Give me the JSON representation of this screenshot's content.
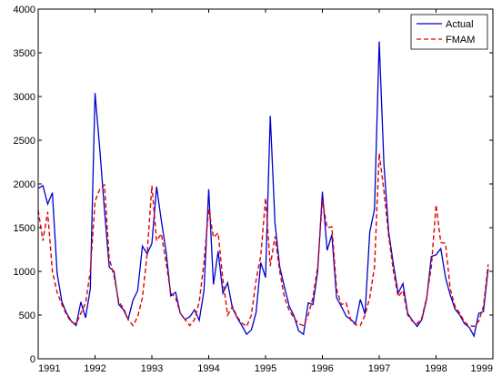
{
  "chart_data": {
    "type": "line",
    "xlim": [
      1991,
      1999
    ],
    "ylim": [
      0,
      4000
    ],
    "xticks": [
      1991,
      1992,
      1993,
      1994,
      1995,
      1996,
      1997,
      1998,
      1999
    ],
    "yticks": [
      0,
      500,
      1000,
      1500,
      2000,
      2500,
      3000,
      3500,
      4000
    ],
    "grid": false,
    "legend_position": "top-right",
    "series": [
      {
        "name": "Actual",
        "color": "#0000cc",
        "style": "solid",
        "x": [
          1991.0,
          1991.083,
          1991.167,
          1991.25,
          1991.333,
          1991.417,
          1991.5,
          1991.583,
          1991.667,
          1991.75,
          1991.833,
          1991.917,
          1992.0,
          1992.083,
          1992.167,
          1992.25,
          1992.333,
          1992.417,
          1992.5,
          1992.583,
          1992.667,
          1992.75,
          1992.833,
          1992.917,
          1993.0,
          1993.083,
          1993.167,
          1993.25,
          1993.333,
          1993.417,
          1993.5,
          1993.583,
          1993.667,
          1993.75,
          1993.833,
          1993.917,
          1994.0,
          1994.083,
          1994.167,
          1994.25,
          1994.333,
          1994.417,
          1994.5,
          1994.583,
          1994.667,
          1994.75,
          1994.833,
          1994.917,
          1995.0,
          1995.083,
          1995.167,
          1995.25,
          1995.333,
          1995.417,
          1995.5,
          1995.583,
          1995.667,
          1995.75,
          1995.833,
          1995.917,
          1996.0,
          1996.083,
          1996.167,
          1996.25,
          1996.333,
          1996.417,
          1996.5,
          1996.583,
          1996.667,
          1996.75,
          1996.833,
          1996.917,
          1997.0,
          1997.083,
          1997.167,
          1997.25,
          1997.333,
          1997.417,
          1997.5,
          1997.583,
          1997.667,
          1997.75,
          1997.833,
          1997.917,
          1998.0,
          1998.083,
          1998.167,
          1998.25,
          1998.333,
          1998.417,
          1998.5,
          1998.583,
          1998.667,
          1998.75,
          1998.833,
          1998.917
        ],
        "values": [
          1950,
          1980,
          1770,
          1900,
          980,
          650,
          520,
          430,
          380,
          650,
          470,
          800,
          3040,
          2400,
          1700,
          1050,
          1000,
          620,
          560,
          450,
          670,
          780,
          1290,
          1200,
          1320,
          1970,
          1580,
          1230,
          720,
          760,
          520,
          450,
          480,
          560,
          440,
          780,
          1940,
          850,
          1230,
          750,
          870,
          580,
          470,
          380,
          280,
          330,
          530,
          1100,
          930,
          2780,
          1550,
          1050,
          820,
          600,
          490,
          320,
          280,
          640,
          620,
          1000,
          1910,
          1240,
          1420,
          700,
          600,
          490,
          450,
          400,
          680,
          510,
          1450,
          1710,
          3630,
          2220,
          1450,
          1080,
          750,
          860,
          520,
          440,
          370,
          450,
          680,
          1170,
          1190,
          1260,
          930,
          730,
          570,
          500,
          400,
          360,
          260,
          520,
          540,
          1030
        ]
      },
      {
        "name": "FMAM",
        "color": "#e00000",
        "style": "dashed",
        "x": [
          1991.0,
          1991.083,
          1991.167,
          1991.25,
          1991.333,
          1991.417,
          1991.5,
          1991.583,
          1991.667,
          1991.75,
          1991.833,
          1991.917,
          1992.0,
          1992.083,
          1992.167,
          1992.25,
          1992.333,
          1992.417,
          1992.5,
          1992.583,
          1992.667,
          1992.75,
          1992.833,
          1992.917,
          1993.0,
          1993.083,
          1993.167,
          1993.25,
          1993.333,
          1993.417,
          1993.5,
          1993.583,
          1993.667,
          1993.75,
          1993.833,
          1993.917,
          1994.0,
          1994.083,
          1994.167,
          1994.25,
          1994.333,
          1994.417,
          1994.5,
          1994.583,
          1994.667,
          1994.75,
          1994.833,
          1994.917,
          1995.0,
          1995.083,
          1995.167,
          1995.25,
          1995.333,
          1995.417,
          1995.5,
          1995.583,
          1995.667,
          1995.75,
          1995.833,
          1995.917,
          1996.0,
          1996.083,
          1996.167,
          1996.25,
          1996.333,
          1996.417,
          1996.5,
          1996.583,
          1996.667,
          1996.75,
          1996.833,
          1996.917,
          1997.0,
          1997.083,
          1997.167,
          1997.25,
          1997.333,
          1997.417,
          1997.5,
          1997.583,
          1997.667,
          1997.75,
          1997.833,
          1997.917,
          1998.0,
          1998.083,
          1998.167,
          1998.25,
          1998.333,
          1998.417,
          1998.5,
          1998.583,
          1998.667,
          1998.75,
          1998.833,
          1998.917
        ],
        "values": [
          1700,
          1350,
          1680,
          1000,
          760,
          620,
          500,
          420,
          400,
          520,
          640,
          1000,
          1800,
          1940,
          1990,
          1150,
          950,
          650,
          580,
          450,
          380,
          480,
          700,
          1200,
          1980,
          1350,
          1430,
          1100,
          750,
          700,
          520,
          450,
          380,
          450,
          650,
          1100,
          1720,
          1390,
          1440,
          900,
          500,
          600,
          480,
          410,
          370,
          500,
          900,
          1180,
          1840,
          1060,
          1400,
          1000,
          700,
          550,
          470,
          400,
          380,
          500,
          700,
          1050,
          1810,
          1500,
          1510,
          800,
          620,
          640,
          440,
          390,
          380,
          500,
          700,
          1050,
          2350,
          1920,
          1400,
          1000,
          710,
          780,
          500,
          430,
          400,
          470,
          700,
          1050,
          1760,
          1330,
          1320,
          800,
          600,
          520,
          420,
          380,
          370,
          430,
          600,
          1080
        ]
      }
    ]
  }
}
